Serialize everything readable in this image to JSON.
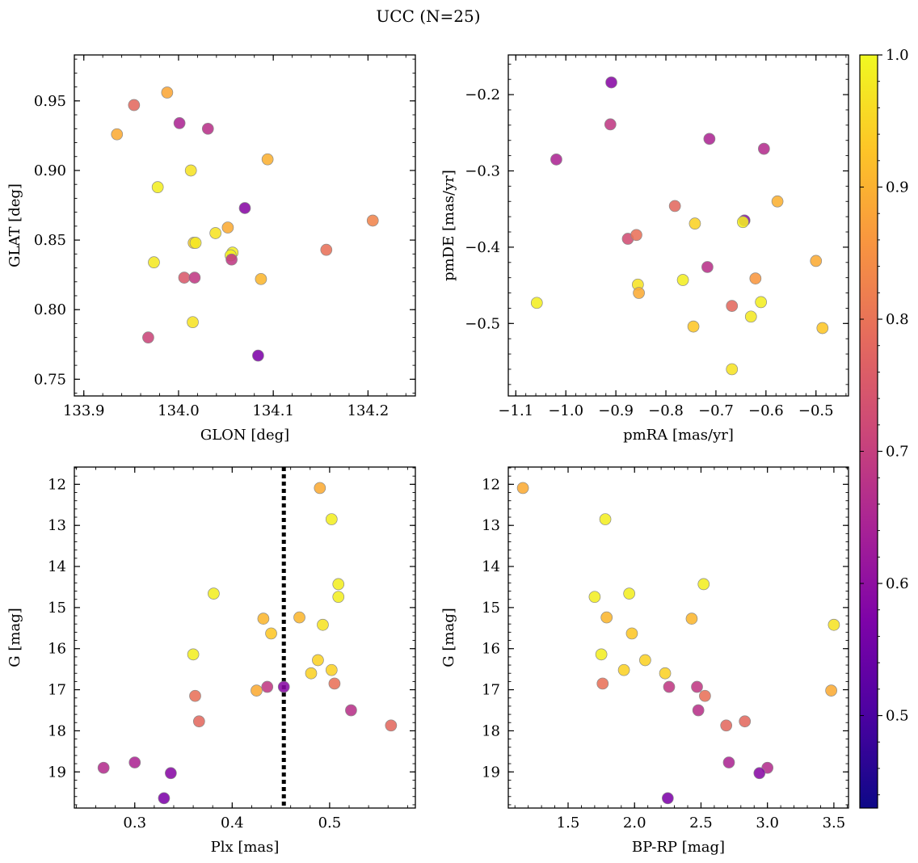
{
  "figure": {
    "title": "UCC (N=25)"
  },
  "colorbar": {
    "ticks": [
      "0.5",
      "0.6",
      "0.7",
      "0.8",
      "0.9",
      "1.0"
    ],
    "tick_values": [
      0.5,
      0.6,
      0.7,
      0.8,
      0.9,
      1.0
    ],
    "vmin": 0.43,
    "vmax": 1.0,
    "colormap": "plasma"
  },
  "chart_data": [
    {
      "id": "glon-glat",
      "type": "scatter",
      "xlabel": "GLON [deg]",
      "ylabel": "GLAT [deg]",
      "xlim": [
        133.89,
        134.25
      ],
      "ylim": [
        0.738,
        0.983
      ],
      "y_inverted": false,
      "xticks": [
        133.9,
        134.0,
        134.1,
        134.2
      ],
      "xtick_labels": [
        "133.9",
        "134.0",
        "134.1",
        "134.2"
      ],
      "yticks": [
        0.75,
        0.8,
        0.85,
        0.9,
        0.95
      ],
      "ytick_labels": [
        "0.75",
        "0.80",
        "0.85",
        "0.90",
        "0.95"
      ],
      "points": [
        {
          "x": 133.935,
          "y": 0.926,
          "c": 0.86
        },
        {
          "x": 133.953,
          "y": 0.947,
          "c": 0.72
        },
        {
          "x": 133.988,
          "y": 0.956,
          "c": 0.85
        },
        {
          "x": 134.001,
          "y": 0.934,
          "c": 0.55
        },
        {
          "x": 134.031,
          "y": 0.93,
          "c": 0.58
        },
        {
          "x": 134.013,
          "y": 0.9,
          "c": 0.96
        },
        {
          "x": 133.978,
          "y": 0.888,
          "c": 0.98
        },
        {
          "x": 134.094,
          "y": 0.908,
          "c": 0.87
        },
        {
          "x": 134.07,
          "y": 0.873,
          "c": 0.47
        },
        {
          "x": 134.052,
          "y": 0.859,
          "c": 0.86
        },
        {
          "x": 134.039,
          "y": 0.855,
          "c": 0.96
        },
        {
          "x": 134.016,
          "y": 0.848,
          "c": 0.93
        },
        {
          "x": 134.018,
          "y": 0.848,
          "c": 0.97
        },
        {
          "x": 134.057,
          "y": 0.841,
          "c": 0.98
        },
        {
          "x": 134.055,
          "y": 0.839,
          "c": 0.98
        },
        {
          "x": 134.056,
          "y": 0.836,
          "c": 0.6
        },
        {
          "x": 133.974,
          "y": 0.834,
          "c": 0.97
        },
        {
          "x": 134.006,
          "y": 0.823,
          "c": 0.68
        },
        {
          "x": 134.017,
          "y": 0.823,
          "c": 0.6
        },
        {
          "x": 134.087,
          "y": 0.822,
          "c": 0.88
        },
        {
          "x": 134.156,
          "y": 0.843,
          "c": 0.74
        },
        {
          "x": 134.205,
          "y": 0.864,
          "c": 0.78
        },
        {
          "x": 134.015,
          "y": 0.791,
          "c": 0.96
        },
        {
          "x": 133.968,
          "y": 0.78,
          "c": 0.63
        },
        {
          "x": 134.084,
          "y": 0.767,
          "c": 0.45
        }
      ]
    },
    {
      "id": "pmra-pmde",
      "type": "scatter",
      "xlabel": "pmRA [mas/yr]",
      "ylabel": "pmDE [mas/yr]",
      "xlim": [
        -1.115,
        -0.435
      ],
      "ylim": [
        -0.595,
        -0.148
      ],
      "y_inverted": false,
      "xticks": [
        -1.1,
        -1.0,
        -0.9,
        -0.8,
        -0.7,
        -0.6,
        -0.5
      ],
      "xtick_labels": [
        "−1.1",
        "−1.0",
        "−0.9",
        "−0.8",
        "−0.7",
        "−0.6",
        "−0.5"
      ],
      "yticks": [
        -0.5,
        -0.4,
        -0.3,
        -0.2
      ],
      "ytick_labels": [
        "−0.5",
        "−0.4",
        "−0.3",
        "−0.2"
      ],
      "points": [
        {
          "x": -0.909,
          "y": -0.184,
          "c": 0.47
        },
        {
          "x": -0.911,
          "y": -0.239,
          "c": 0.6
        },
        {
          "x": -1.019,
          "y": -0.285,
          "c": 0.55
        },
        {
          "x": -0.713,
          "y": -0.258,
          "c": 0.55
        },
        {
          "x": -0.604,
          "y": -0.271,
          "c": 0.57
        },
        {
          "x": -0.782,
          "y": -0.346,
          "c": 0.72
        },
        {
          "x": -0.742,
          "y": -0.369,
          "c": 0.93
        },
        {
          "x": -0.643,
          "y": -0.365,
          "c": 0.47
        },
        {
          "x": -0.646,
          "y": -0.367,
          "c": 0.98
        },
        {
          "x": -0.577,
          "y": -0.34,
          "c": 0.87
        },
        {
          "x": -0.876,
          "y": -0.389,
          "c": 0.65
        },
        {
          "x": -0.859,
          "y": -0.384,
          "c": 0.74
        },
        {
          "x": -0.717,
          "y": -0.426,
          "c": 0.58
        },
        {
          "x": -0.5,
          "y": -0.418,
          "c": 0.86
        },
        {
          "x": -0.621,
          "y": -0.441,
          "c": 0.82
        },
        {
          "x": -0.856,
          "y": -0.449,
          "c": 0.96
        },
        {
          "x": -0.854,
          "y": -0.46,
          "c": 0.86
        },
        {
          "x": -0.766,
          "y": -0.443,
          "c": 0.98
        },
        {
          "x": -1.058,
          "y": -0.473,
          "c": 0.98
        },
        {
          "x": -0.668,
          "y": -0.477,
          "c": 0.72
        },
        {
          "x": -0.61,
          "y": -0.472,
          "c": 0.98
        },
        {
          "x": -0.63,
          "y": -0.491,
          "c": 0.97
        },
        {
          "x": -0.745,
          "y": -0.504,
          "c": 0.91
        },
        {
          "x": -0.487,
          "y": -0.506,
          "c": 0.91
        },
        {
          "x": -0.668,
          "y": -0.56,
          "c": 0.96
        }
      ]
    },
    {
      "id": "plx-g",
      "type": "scatter",
      "xlabel": "Plx [mas]",
      "ylabel": "G [mag]",
      "xlim": [
        0.238,
        0.588
      ],
      "ylim": [
        11.58,
        19.88
      ],
      "y_inverted": true,
      "vline": 0.453,
      "xticks": [
        0.3,
        0.4,
        0.5
      ],
      "xtick_labels": [
        "0.3",
        "0.4",
        "0.5"
      ],
      "yticks": [
        12,
        13,
        14,
        15,
        16,
        17,
        18,
        19
      ],
      "ytick_labels": [
        "12",
        "13",
        "14",
        "15",
        "16",
        "17",
        "18",
        "19"
      ],
      "points": [
        {
          "x": 0.49,
          "y": 12.09,
          "c": 0.86
        },
        {
          "x": 0.502,
          "y": 12.85,
          "c": 0.98
        },
        {
          "x": 0.509,
          "y": 14.43,
          "c": 0.98
        },
        {
          "x": 0.509,
          "y": 14.74,
          "c": 0.98
        },
        {
          "x": 0.381,
          "y": 14.66,
          "c": 0.98
        },
        {
          "x": 0.432,
          "y": 15.27,
          "c": 0.88
        },
        {
          "x": 0.469,
          "y": 15.24,
          "c": 0.88
        },
        {
          "x": 0.493,
          "y": 15.42,
          "c": 0.96
        },
        {
          "x": 0.44,
          "y": 15.63,
          "c": 0.91
        },
        {
          "x": 0.36,
          "y": 16.14,
          "c": 0.98
        },
        {
          "x": 0.488,
          "y": 16.28,
          "c": 0.93
        },
        {
          "x": 0.502,
          "y": 16.52,
          "c": 0.93
        },
        {
          "x": 0.481,
          "y": 16.6,
          "c": 0.93
        },
        {
          "x": 0.505,
          "y": 16.85,
          "c": 0.74
        },
        {
          "x": 0.425,
          "y": 17.02,
          "c": 0.86
        },
        {
          "x": 0.436,
          "y": 16.93,
          "c": 0.6
        },
        {
          "x": 0.453,
          "y": 16.93,
          "c": 0.47
        },
        {
          "x": 0.362,
          "y": 17.15,
          "c": 0.74
        },
        {
          "x": 0.366,
          "y": 17.77,
          "c": 0.72
        },
        {
          "x": 0.522,
          "y": 17.5,
          "c": 0.58
        },
        {
          "x": 0.563,
          "y": 17.87,
          "c": 0.72
        },
        {
          "x": 0.268,
          "y": 18.9,
          "c": 0.57
        },
        {
          "x": 0.3,
          "y": 18.77,
          "c": 0.55
        },
        {
          "x": 0.337,
          "y": 19.03,
          "c": 0.47
        },
        {
          "x": 0.33,
          "y": 19.64,
          "c": 0.45
        }
      ]
    },
    {
      "id": "bprp-g",
      "type": "scatter",
      "xlabel": "BP-RP [mag]",
      "ylabel": "G [mag]",
      "xlim": [
        1.05,
        3.61
      ],
      "ylim": [
        11.58,
        19.88
      ],
      "y_inverted": true,
      "xticks": [
        1.5,
        2.0,
        2.5,
        3.0,
        3.5
      ],
      "xtick_labels": [
        "1.5",
        "2.0",
        "2.5",
        "3.0",
        "3.5"
      ],
      "yticks": [
        12,
        13,
        14,
        15,
        16,
        17,
        18,
        19
      ],
      "ytick_labels": [
        "12",
        "13",
        "14",
        "15",
        "16",
        "17",
        "18",
        "19"
      ],
      "points": [
        {
          "x": 1.16,
          "y": 12.09,
          "c": 0.86
        },
        {
          "x": 1.78,
          "y": 12.85,
          "c": 0.98
        },
        {
          "x": 2.52,
          "y": 14.43,
          "c": 0.98
        },
        {
          "x": 1.7,
          "y": 14.74,
          "c": 0.98
        },
        {
          "x": 1.96,
          "y": 14.66,
          "c": 0.98
        },
        {
          "x": 1.79,
          "y": 15.24,
          "c": 0.88
        },
        {
          "x": 2.43,
          "y": 15.27,
          "c": 0.88
        },
        {
          "x": 3.5,
          "y": 15.42,
          "c": 0.96
        },
        {
          "x": 1.98,
          "y": 15.63,
          "c": 0.91
        },
        {
          "x": 1.75,
          "y": 16.14,
          "c": 0.98
        },
        {
          "x": 2.08,
          "y": 16.28,
          "c": 0.93
        },
        {
          "x": 1.92,
          "y": 16.52,
          "c": 0.93
        },
        {
          "x": 2.23,
          "y": 16.6,
          "c": 0.93
        },
        {
          "x": 1.76,
          "y": 16.85,
          "c": 0.74
        },
        {
          "x": 2.26,
          "y": 16.93,
          "c": 0.6
        },
        {
          "x": 2.47,
          "y": 16.93,
          "c": 0.6
        },
        {
          "x": 3.48,
          "y": 17.02,
          "c": 0.86
        },
        {
          "x": 2.53,
          "y": 17.15,
          "c": 0.74
        },
        {
          "x": 2.48,
          "y": 17.5,
          "c": 0.58
        },
        {
          "x": 2.83,
          "y": 17.77,
          "c": 0.72
        },
        {
          "x": 2.69,
          "y": 17.87,
          "c": 0.72
        },
        {
          "x": 2.71,
          "y": 18.77,
          "c": 0.55
        },
        {
          "x": 3.0,
          "y": 18.9,
          "c": 0.57
        },
        {
          "x": 2.94,
          "y": 19.03,
          "c": 0.47
        },
        {
          "x": 2.25,
          "y": 19.64,
          "c": 0.45
        }
      ]
    }
  ]
}
